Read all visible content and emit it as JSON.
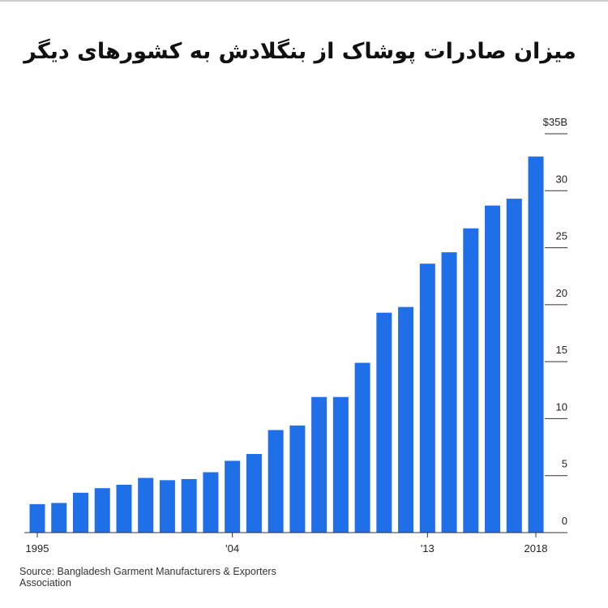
{
  "chart_data": {
    "type": "bar",
    "title": "میزان صادرات پوشاک از بنگلادش به کشورهای دیگر",
    "source": "Source: Bangladesh Garment Manufacturers & Exporters Association",
    "categories": [
      "1995",
      null,
      null,
      null,
      null,
      null,
      null,
      null,
      null,
      "'04",
      null,
      null,
      null,
      null,
      null,
      null,
      null,
      null,
      "'13",
      null,
      null,
      null,
      null,
      "2018"
    ],
    "values": [
      2.5,
      2.6,
      3.5,
      3.9,
      4.2,
      4.8,
      4.6,
      4.7,
      5.3,
      6.3,
      6.9,
      9.0,
      9.4,
      11.9,
      11.9,
      14.9,
      19.3,
      19.8,
      23.6,
      24.6,
      26.7,
      28.7,
      29.3,
      33.0
    ],
    "color": "#1f6fe8",
    "ylim": [
      0,
      35
    ],
    "yticks": [
      0,
      5,
      10,
      15,
      20,
      25,
      30,
      {
        "value": 35,
        "label": "$35B"
      }
    ]
  }
}
